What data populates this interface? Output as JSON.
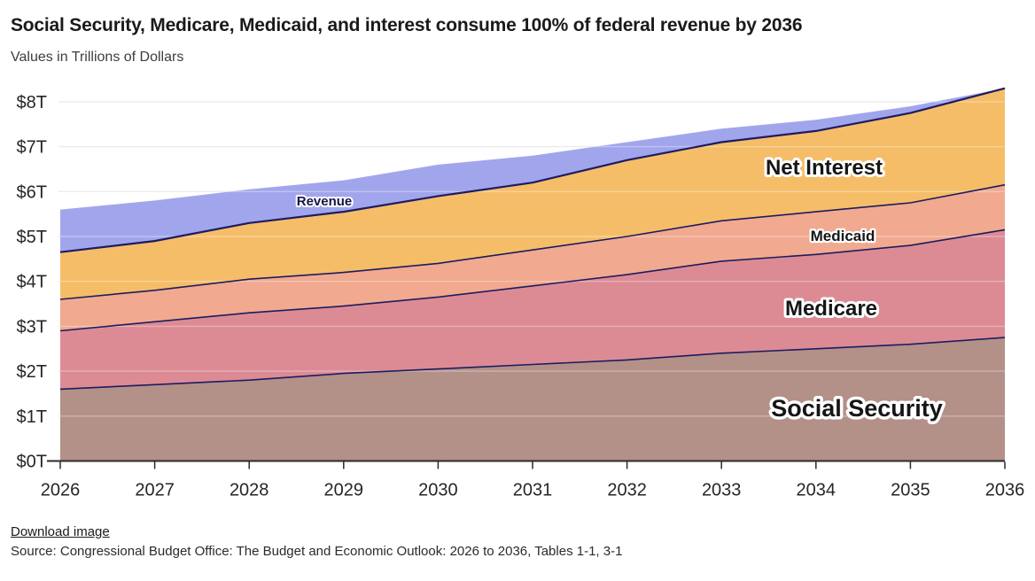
{
  "header": {
    "title": "Social Security, Medicare, Medicaid, and interest consume 100% of federal revenue by 2036",
    "subtitle": "Values in Trillions of Dollars"
  },
  "footer": {
    "download_label": "Download image",
    "source": "Source: Congressional Budget Office: The Budget and Economic Outlook: 2026 to 2036, Tables 1-1, 3-1"
  },
  "chart_data": {
    "type": "area",
    "stacked": true,
    "title": "Social Security, Medicare, Medicaid, and interest consume 100% of federal revenue by 2036",
    "subtitle": "Values in Trillions of Dollars",
    "units": "trillions of dollars",
    "x": [
      2026,
      2027,
      2028,
      2029,
      2030,
      2031,
      2032,
      2033,
      2034,
      2035,
      2036
    ],
    "series": [
      {
        "name": "Social Security",
        "color": "#b39088",
        "values": [
          1.6,
          1.7,
          1.8,
          1.95,
          2.05,
          2.15,
          2.25,
          2.4,
          2.5,
          2.6,
          2.75
        ]
      },
      {
        "name": "Medicare",
        "color": "#dc8b94",
        "values": [
          1.3,
          1.4,
          1.5,
          1.5,
          1.6,
          1.75,
          1.9,
          2.05,
          2.1,
          2.2,
          2.4
        ]
      },
      {
        "name": "Medicaid",
        "color": "#f1a98f",
        "values": [
          0.7,
          0.7,
          0.75,
          0.75,
          0.75,
          0.8,
          0.85,
          0.9,
          0.95,
          0.95,
          1.0
        ]
      },
      {
        "name": "Net Interest",
        "color": "#f6bd69",
        "values": [
          1.05,
          1.1,
          1.25,
          1.35,
          1.5,
          1.5,
          1.7,
          1.75,
          1.8,
          2.0,
          2.15
        ]
      }
    ],
    "revenue": {
      "name": "Revenue",
      "color": "#a1a6ec",
      "values": [
        5.6,
        5.8,
        6.05,
        6.25,
        6.6,
        6.8,
        7.1,
        7.4,
        7.6,
        7.9,
        8.3
      ]
    },
    "area_labels": {
      "revenue": "Revenue",
      "net_interest": "Net Interest",
      "medicaid": "Medicaid",
      "medicare": "Medicare",
      "social_security": "Social Security"
    },
    "yticks": [
      "$0T",
      "$1T",
      "$2T",
      "$3T",
      "$4T",
      "$5T",
      "$6T",
      "$7T",
      "$8T"
    ],
    "ylim": [
      0,
      8
    ],
    "grid": true,
    "legend": "inline-labels",
    "colors": {
      "boundary_line": "#1c1c60",
      "axis": "#2b2b2b",
      "gridline": "#e3e3e3",
      "revenue_label_text": "#15154a",
      "area_label_text": "#161616"
    }
  }
}
